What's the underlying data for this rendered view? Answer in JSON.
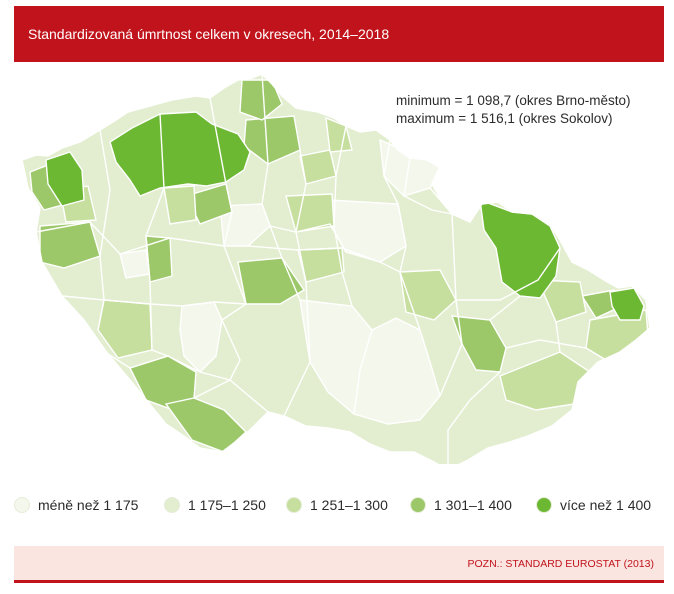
{
  "header": {
    "title": "Standardizovaná úmrtnost celkem v okresech, 2014–2018"
  },
  "stats": {
    "minimum": "minimum = 1 098,7 (okres Brno-město)",
    "maximum": "maximum = 1 516,1 (okres Sokolov)"
  },
  "legend": {
    "items": [
      {
        "label": "méně než 1 175",
        "color": "#f4f7ec"
      },
      {
        "label": "1 175–1 250",
        "color": "#e2eecf"
      },
      {
        "label": "1 251–1 300",
        "color": "#c6df9f"
      },
      {
        "label": "1 301–1 400",
        "color": "#9cc86a"
      },
      {
        "label": "více než 1 400",
        "color": "#6db833"
      }
    ]
  },
  "note": {
    "text": "POZN.: STANDARD EUROSTAT (2013)"
  }
}
